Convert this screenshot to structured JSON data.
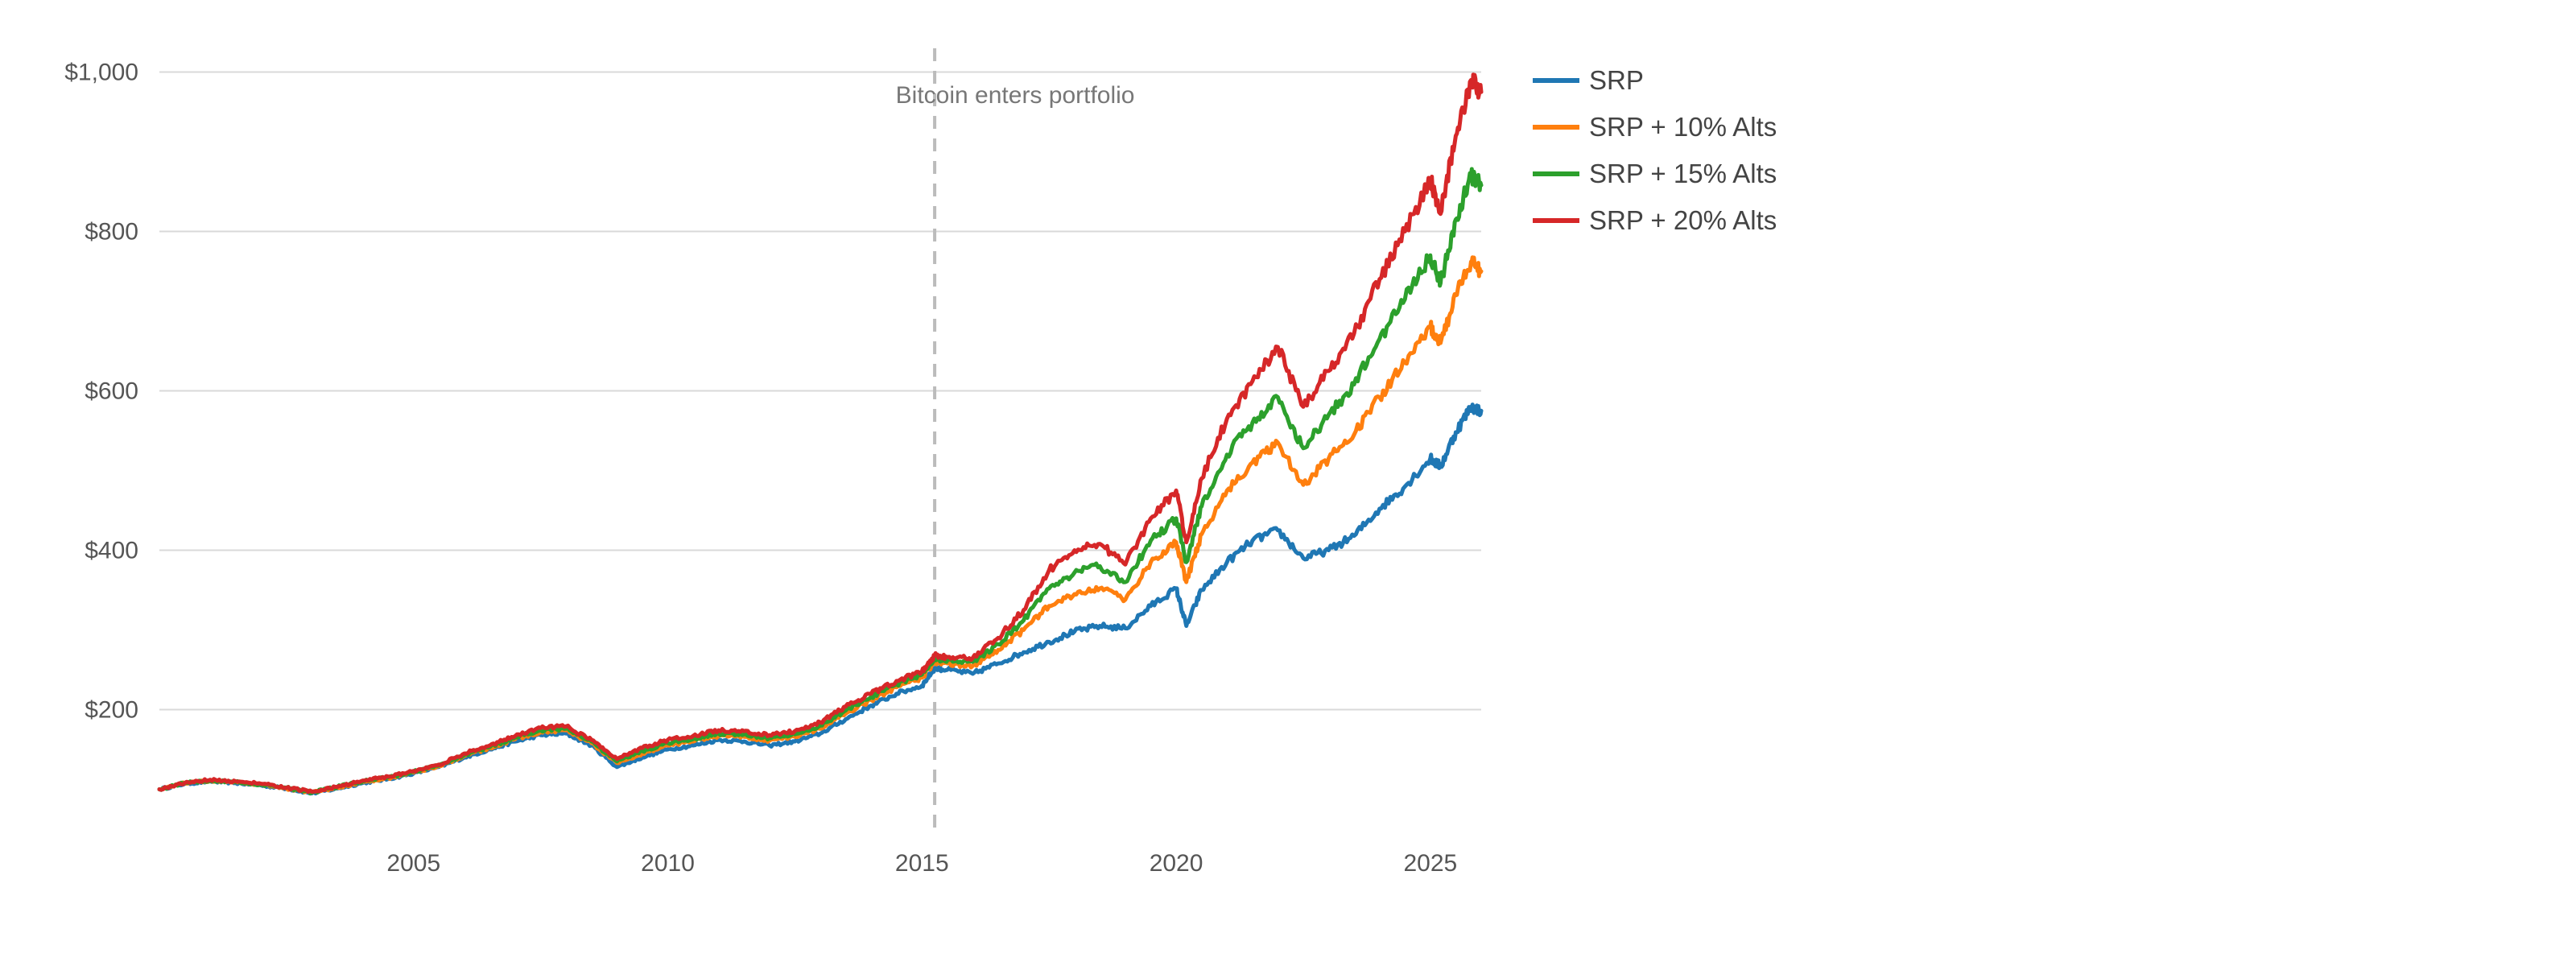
{
  "chart_data": {
    "type": "line",
    "title": "",
    "xlabel": "",
    "ylabel": "",
    "x_ticks": [
      2005,
      2010,
      2015,
      2020,
      2025
    ],
    "y_ticks": [
      200,
      400,
      600,
      800,
      1000
    ],
    "y_tick_labels": [
      "$200",
      "$400",
      "$600",
      "$800",
      "$1,000"
    ],
    "x_tick_labels": [
      "2005",
      "2010",
      "2015",
      "2020",
      "2025"
    ],
    "xlim": [
      2000.0,
      2026.0
    ],
    "ylim": [
      50,
      1050
    ],
    "grid": "horizontal",
    "legend_position": "right",
    "annotation": {
      "text": "Bitcoin enters portfolio",
      "x": 2015.25
    },
    "series": [
      {
        "name": "SRP",
        "color": "#1f77b4",
        "points": [
          [
            2000.0,
            100
          ],
          [
            2000.5,
            107
          ],
          [
            2001.0,
            110
          ],
          [
            2001.5,
            108
          ],
          [
            2002.0,
            105
          ],
          [
            2002.5,
            101
          ],
          [
            2003.0,
            95
          ],
          [
            2003.5,
            101
          ],
          [
            2004.0,
            108
          ],
          [
            2004.5,
            113
          ],
          [
            2005.0,
            120
          ],
          [
            2005.5,
            128
          ],
          [
            2006.0,
            140
          ],
          [
            2006.5,
            150
          ],
          [
            2007.0,
            160
          ],
          [
            2007.5,
            168
          ],
          [
            2008.0,
            170
          ],
          [
            2008.5,
            155
          ],
          [
            2009.0,
            128
          ],
          [
            2009.5,
            140
          ],
          [
            2010.0,
            150
          ],
          [
            2010.5,
            155
          ],
          [
            2011.0,
            162
          ],
          [
            2011.5,
            160
          ],
          [
            2012.0,
            155
          ],
          [
            2012.5,
            160
          ],
          [
            2013.0,
            170
          ],
          [
            2013.5,
            188
          ],
          [
            2014.0,
            205
          ],
          [
            2014.5,
            220
          ],
          [
            2015.0,
            230
          ],
          [
            2015.25,
            252
          ],
          [
            2015.5,
            250
          ],
          [
            2016.0,
            245
          ],
          [
            2016.5,
            258
          ],
          [
            2017.0,
            272
          ],
          [
            2017.5,
            285
          ],
          [
            2018.0,
            298
          ],
          [
            2018.5,
            305
          ],
          [
            2019.0,
            302
          ],
          [
            2019.5,
            330
          ],
          [
            2020.0,
            352
          ],
          [
            2020.2,
            305
          ],
          [
            2020.5,
            350
          ],
          [
            2021.0,
            385
          ],
          [
            2021.5,
            412
          ],
          [
            2022.0,
            425
          ],
          [
            2022.5,
            390
          ],
          [
            2023.0,
            400
          ],
          [
            2023.5,
            418
          ],
          [
            2024.0,
            452
          ],
          [
            2024.5,
            480
          ],
          [
            2025.0,
            515
          ],
          [
            2025.2,
            505
          ],
          [
            2025.5,
            548
          ],
          [
            2025.8,
            580
          ],
          [
            2026.0,
            575
          ]
        ]
      },
      {
        "name": "SRP + 10% Alts",
        "color": "#ff7f0e",
        "points": [
          [
            2000.0,
            100
          ],
          [
            2000.5,
            108
          ],
          [
            2001.0,
            111
          ],
          [
            2001.5,
            109
          ],
          [
            2002.0,
            106
          ],
          [
            2002.5,
            101
          ],
          [
            2003.0,
            96
          ],
          [
            2003.5,
            102
          ],
          [
            2004.0,
            109
          ],
          [
            2004.5,
            114
          ],
          [
            2005.0,
            121
          ],
          [
            2005.5,
            129
          ],
          [
            2006.0,
            142
          ],
          [
            2006.5,
            152
          ],
          [
            2007.0,
            163
          ],
          [
            2007.5,
            172
          ],
          [
            2008.0,
            174
          ],
          [
            2008.5,
            158
          ],
          [
            2009.0,
            133
          ],
          [
            2009.5,
            145
          ],
          [
            2010.0,
            155
          ],
          [
            2010.5,
            160
          ],
          [
            2011.0,
            167
          ],
          [
            2011.5,
            166
          ],
          [
            2012.0,
            161
          ],
          [
            2012.5,
            166
          ],
          [
            2013.0,
            176
          ],
          [
            2013.5,
            195
          ],
          [
            2014.0,
            212
          ],
          [
            2014.5,
            228
          ],
          [
            2015.0,
            240
          ],
          [
            2015.25,
            260
          ],
          [
            2015.5,
            258
          ],
          [
            2016.0,
            255
          ],
          [
            2016.5,
            275
          ],
          [
            2017.0,
            300
          ],
          [
            2017.5,
            330
          ],
          [
            2018.0,
            345
          ],
          [
            2018.5,
            352
          ],
          [
            2019.0,
            338
          ],
          [
            2019.5,
            385
          ],
          [
            2020.0,
            410
          ],
          [
            2020.2,
            360
          ],
          [
            2020.5,
            420
          ],
          [
            2021.0,
            475
          ],
          [
            2021.5,
            510
          ],
          [
            2022.0,
            535
          ],
          [
            2022.5,
            482
          ],
          [
            2023.0,
            515
          ],
          [
            2023.5,
            545
          ],
          [
            2024.0,
            592
          ],
          [
            2024.5,
            635
          ],
          [
            2025.0,
            680
          ],
          [
            2025.2,
            660
          ],
          [
            2025.5,
            720
          ],
          [
            2025.8,
            762
          ],
          [
            2026.0,
            750
          ]
        ]
      },
      {
        "name": "SRP + 15% Alts",
        "color": "#2ca02c",
        "points": [
          [
            2000.0,
            100
          ],
          [
            2000.5,
            108
          ],
          [
            2001.0,
            111
          ],
          [
            2001.5,
            109
          ],
          [
            2002.0,
            106
          ],
          [
            2002.5,
            102
          ],
          [
            2003.0,
            96
          ],
          [
            2003.5,
            103
          ],
          [
            2004.0,
            110
          ],
          [
            2004.5,
            115
          ],
          [
            2005.0,
            122
          ],
          [
            2005.5,
            130
          ],
          [
            2006.0,
            143
          ],
          [
            2006.5,
            153
          ],
          [
            2007.0,
            165
          ],
          [
            2007.5,
            174
          ],
          [
            2008.0,
            176
          ],
          [
            2008.5,
            160
          ],
          [
            2009.0,
            135
          ],
          [
            2009.5,
            148
          ],
          [
            2010.0,
            158
          ],
          [
            2010.5,
            163
          ],
          [
            2011.0,
            170
          ],
          [
            2011.5,
            169
          ],
          [
            2012.0,
            164
          ],
          [
            2012.5,
            169
          ],
          [
            2013.0,
            180
          ],
          [
            2013.5,
            199
          ],
          [
            2014.0,
            216
          ],
          [
            2014.5,
            232
          ],
          [
            2015.0,
            244
          ],
          [
            2015.25,
            264
          ],
          [
            2015.5,
            262
          ],
          [
            2016.0,
            260
          ],
          [
            2016.5,
            282
          ],
          [
            2017.0,
            312
          ],
          [
            2017.5,
            352
          ],
          [
            2018.0,
            372
          ],
          [
            2018.5,
            380
          ],
          [
            2019.0,
            360
          ],
          [
            2019.5,
            412
          ],
          [
            2020.0,
            440
          ],
          [
            2020.2,
            385
          ],
          [
            2020.5,
            455
          ],
          [
            2021.0,
            520
          ],
          [
            2021.5,
            560
          ],
          [
            2022.0,
            592
          ],
          [
            2022.5,
            528
          ],
          [
            2023.0,
            570
          ],
          [
            2023.5,
            608
          ],
          [
            2024.0,
            665
          ],
          [
            2024.5,
            715
          ],
          [
            2025.0,
            770
          ],
          [
            2025.2,
            735
          ],
          [
            2025.5,
            815
          ],
          [
            2025.8,
            870
          ],
          [
            2026.0,
            858
          ]
        ]
      },
      {
        "name": "SRP + 20% Alts",
        "color": "#d62728",
        "points": [
          [
            2000.0,
            100
          ],
          [
            2000.5,
            108
          ],
          [
            2001.0,
            112
          ],
          [
            2001.5,
            110
          ],
          [
            2002.0,
            107
          ],
          [
            2002.5,
            102
          ],
          [
            2003.0,
            97
          ],
          [
            2003.5,
            103
          ],
          [
            2004.0,
            111
          ],
          [
            2004.5,
            116
          ],
          [
            2005.0,
            123
          ],
          [
            2005.5,
            131
          ],
          [
            2006.0,
            145
          ],
          [
            2006.5,
            155
          ],
          [
            2007.0,
            167
          ],
          [
            2007.5,
            177
          ],
          [
            2008.0,
            179
          ],
          [
            2008.5,
            162
          ],
          [
            2009.0,
            138
          ],
          [
            2009.5,
            152
          ],
          [
            2010.0,
            162
          ],
          [
            2010.5,
            167
          ],
          [
            2011.0,
            174
          ],
          [
            2011.5,
            173
          ],
          [
            2012.0,
            168
          ],
          [
            2012.5,
            173
          ],
          [
            2013.0,
            184
          ],
          [
            2013.5,
            204
          ],
          [
            2014.0,
            220
          ],
          [
            2014.5,
            236
          ],
          [
            2015.0,
            248
          ],
          [
            2015.25,
            268
          ],
          [
            2015.5,
            266
          ],
          [
            2016.0,
            265
          ],
          [
            2016.5,
            290
          ],
          [
            2017.0,
            325
          ],
          [
            2017.5,
            375
          ],
          [
            2018.0,
            400
          ],
          [
            2018.5,
            408
          ],
          [
            2019.0,
            382
          ],
          [
            2019.5,
            440
          ],
          [
            2020.0,
            475
          ],
          [
            2020.2,
            410
          ],
          [
            2020.5,
            490
          ],
          [
            2021.0,
            565
          ],
          [
            2021.5,
            612
          ],
          [
            2022.0,
            655
          ],
          [
            2022.5,
            580
          ],
          [
            2023.0,
            625
          ],
          [
            2023.5,
            672
          ],
          [
            2024.0,
            740
          ],
          [
            2024.5,
            800
          ],
          [
            2025.0,
            865
          ],
          [
            2025.2,
            822
          ],
          [
            2025.5,
            920
          ],
          [
            2025.8,
            990
          ],
          [
            2026.0,
            975
          ]
        ]
      }
    ]
  }
}
